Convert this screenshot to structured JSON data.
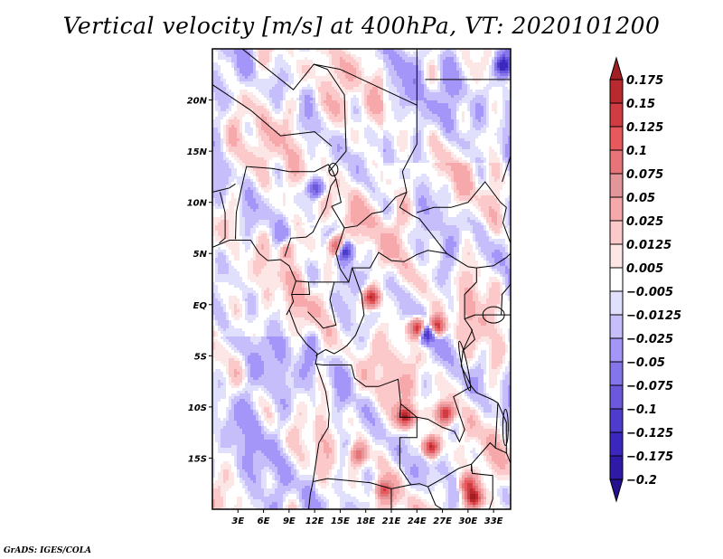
{
  "title": "Vertical velocity [m/s] at 400hPa, VT: 2020101200",
  "credit": "GrADS: IGES/COLA",
  "map": {
    "type": "heatmap",
    "projection": "lat-lon",
    "lon_range": [
      0,
      35
    ],
    "lat_range": [
      -20,
      25
    ],
    "x_ticks": [
      {
        "value": 3,
        "label": "3E"
      },
      {
        "value": 6,
        "label": "6E"
      },
      {
        "value": 9,
        "label": "9E"
      },
      {
        "value": 12,
        "label": "12E"
      },
      {
        "value": 15,
        "label": "15E"
      },
      {
        "value": 18,
        "label": "18E"
      },
      {
        "value": 21,
        "label": "21E"
      },
      {
        "value": 24,
        "label": "24E"
      },
      {
        "value": 27,
        "label": "27E"
      },
      {
        "value": 30,
        "label": "30E"
      },
      {
        "value": 33,
        "label": "33E"
      }
    ],
    "y_ticks": [
      {
        "value": 20,
        "label": "20N"
      },
      {
        "value": 15,
        "label": "15N"
      },
      {
        "value": 10,
        "label": "10N"
      },
      {
        "value": 5,
        "label": "5N"
      },
      {
        "value": 0,
        "label": "EQ"
      },
      {
        "value": -5,
        "label": "5S"
      },
      {
        "value": -10,
        "label": "10S"
      },
      {
        "value": -15,
        "label": "15S"
      }
    ],
    "hotspots": [
      {
        "lon": 14.5,
        "lat": 5.8,
        "v": 0.15
      },
      {
        "lon": 15.3,
        "lat": 5.4,
        "v": -0.15
      },
      {
        "lon": 18.5,
        "lat": 0.8,
        "v": 0.17
      },
      {
        "lon": 24.0,
        "lat": -2.2,
        "v": 0.18
      },
      {
        "lon": 25.0,
        "lat": -2.7,
        "v": -0.15
      },
      {
        "lon": 26.2,
        "lat": -2.0,
        "v": 0.15
      },
      {
        "lon": 22.5,
        "lat": -10.8,
        "v": 0.18
      },
      {
        "lon": 27.2,
        "lat": -10.5,
        "v": 0.16
      },
      {
        "lon": 25.5,
        "lat": -13.8,
        "v": 0.17
      },
      {
        "lon": 30.5,
        "lat": -18.8,
        "v": 0.18
      },
      {
        "lon": 29.8,
        "lat": -17.5,
        "v": 0.12
      },
      {
        "lon": 20.0,
        "lat": -18.0,
        "v": 0.12
      },
      {
        "lon": 34.0,
        "lat": 23.5,
        "v": -0.15
      },
      {
        "lon": 12.0,
        "lat": 11.5,
        "v": -0.1
      },
      {
        "lon": 8.5,
        "lat": 5.5,
        "v": 0.06
      },
      {
        "lon": 17.0,
        "lat": -14.5,
        "v": 0.09
      }
    ]
  },
  "chart_data": {
    "type": "heatmap",
    "title": "Vertical velocity [m/s] at 400hPa, VT: 2020101200",
    "variable": "Vertical velocity",
    "units": "m/s",
    "level": "400hPa",
    "valid_time": "2020101200",
    "xlabel": "",
    "ylabel": "",
    "x_range": [
      0,
      35
    ],
    "y_range": [
      -20,
      25
    ],
    "x_tick_labels": [
      "3E",
      "6E",
      "9E",
      "12E",
      "15E",
      "18E",
      "21E",
      "24E",
      "27E",
      "30E",
      "33E"
    ],
    "y_tick_labels": [
      "20N",
      "15N",
      "10N",
      "5N",
      "EQ",
      "5S",
      "10S",
      "15S"
    ],
    "colorbar": {
      "placement": "right",
      "levels": [
        0.175,
        0.15,
        0.125,
        0.1,
        0.075,
        0.05,
        0.025,
        0.0125,
        0.005,
        -0.005,
        -0.0125,
        -0.025,
        -0.05,
        -0.075,
        -0.1,
        -0.125,
        -0.175,
        -0.2
      ],
      "labels": [
        "0.175",
        "0.15",
        "0.125",
        "0.1",
        "0.075",
        "0.05",
        "0.025",
        "0.0125",
        "0.005",
        "−0.005",
        "−0.0125",
        "−0.025",
        "−0.05",
        "−0.075",
        "−0.1",
        "−0.125",
        "−0.175",
        "−0.2"
      ],
      "colors": [
        "#a01e24",
        "#b92a2e",
        "#cf3d42",
        "#e6595d",
        "#e77478",
        "#e4959a",
        "#f6a8aa",
        "#fbc9ca",
        "#fde6e6",
        "#ffffff",
        "#e0e0fc",
        "#c5befa",
        "#a496f8",
        "#8575ea",
        "#6b58dc",
        "#4e3dcc",
        "#3b27be",
        "#2e1aa6",
        "#25118f"
      ],
      "top_arrow_color": "#a01e24",
      "bottom_arrow_color": "#25118f"
    }
  }
}
